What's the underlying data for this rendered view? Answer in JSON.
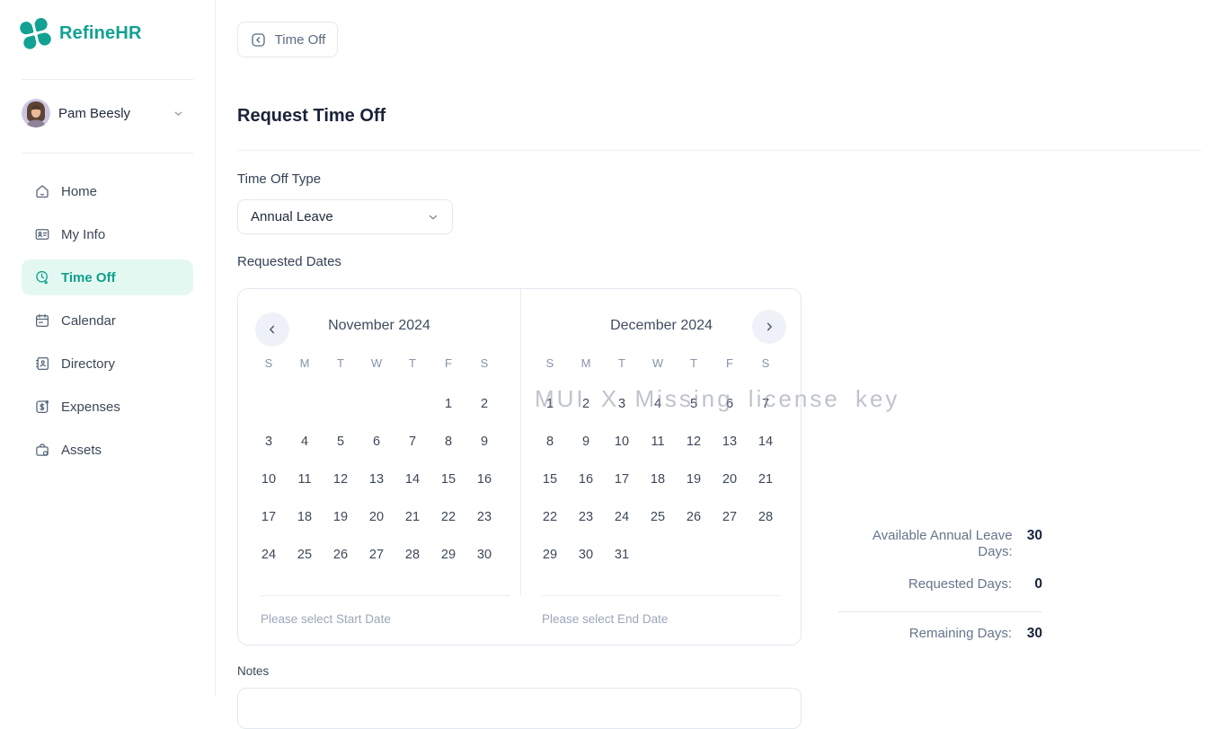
{
  "colors": {
    "accent_teal": "#12a192",
    "active_item_bg": "#e4f8f2",
    "text_dark": "#1e293b",
    "text_slate": "#64748b",
    "text_muted": "#94a3b8",
    "border": "#e2e8f0",
    "watermark_gray": "#8b93a3"
  },
  "sidebar": {
    "brand": "RefineHR",
    "logo_icon": "clover-logo-icon",
    "user": {
      "name": "Pam Beesly"
    },
    "items": [
      {
        "label": "Home",
        "icon": "home-icon",
        "active": false
      },
      {
        "label": "My Info",
        "icon": "my-info-icon",
        "active": false
      },
      {
        "label": "Time Off",
        "icon": "time-off-icon",
        "active": true
      },
      {
        "label": "Calendar",
        "icon": "calendar-icon",
        "active": false
      },
      {
        "label": "Directory",
        "icon": "directory-icon",
        "active": false
      },
      {
        "label": "Expenses",
        "icon": "expenses-icon",
        "active": false
      },
      {
        "label": "Assets",
        "icon": "assets-icon",
        "active": false
      }
    ]
  },
  "breadcrumb": {
    "label": "Time Off"
  },
  "form": {
    "title": "Request Time Off",
    "type_label": "Time Off Type",
    "type_value": "Annual Leave",
    "dates_label": "Requested Dates",
    "start_hint": "Please select Start Date",
    "end_hint": "Please select End Date",
    "notes_label": "Notes",
    "notes_value": ""
  },
  "calendar": {
    "watermark": "MUI X Missing license key",
    "weekdays": [
      "S",
      "M",
      "T",
      "W",
      "T",
      "F",
      "S"
    ],
    "months": [
      {
        "title": "November 2024",
        "weeks": [
          [
            null,
            null,
            null,
            null,
            null,
            1,
            2
          ],
          [
            3,
            4,
            5,
            6,
            7,
            8,
            9
          ],
          [
            10,
            11,
            12,
            13,
            14,
            15,
            16
          ],
          [
            17,
            18,
            19,
            20,
            21,
            22,
            23
          ],
          [
            24,
            25,
            26,
            27,
            28,
            29,
            30
          ]
        ]
      },
      {
        "title": "December 2024",
        "weeks": [
          [
            1,
            2,
            3,
            4,
            5,
            6,
            7
          ],
          [
            8,
            9,
            10,
            11,
            12,
            13,
            14
          ],
          [
            15,
            16,
            17,
            18,
            19,
            20,
            21
          ],
          [
            22,
            23,
            24,
            25,
            26,
            27,
            28
          ],
          [
            29,
            30,
            31,
            null,
            null,
            null,
            null
          ]
        ]
      }
    ]
  },
  "summary": {
    "rows": [
      {
        "label": "Available Annual Leave Days:",
        "value": "30"
      },
      {
        "label": "Requested Days:",
        "value": "0"
      }
    ],
    "remaining_label": "Remaining Days:",
    "remaining_value": "30"
  }
}
